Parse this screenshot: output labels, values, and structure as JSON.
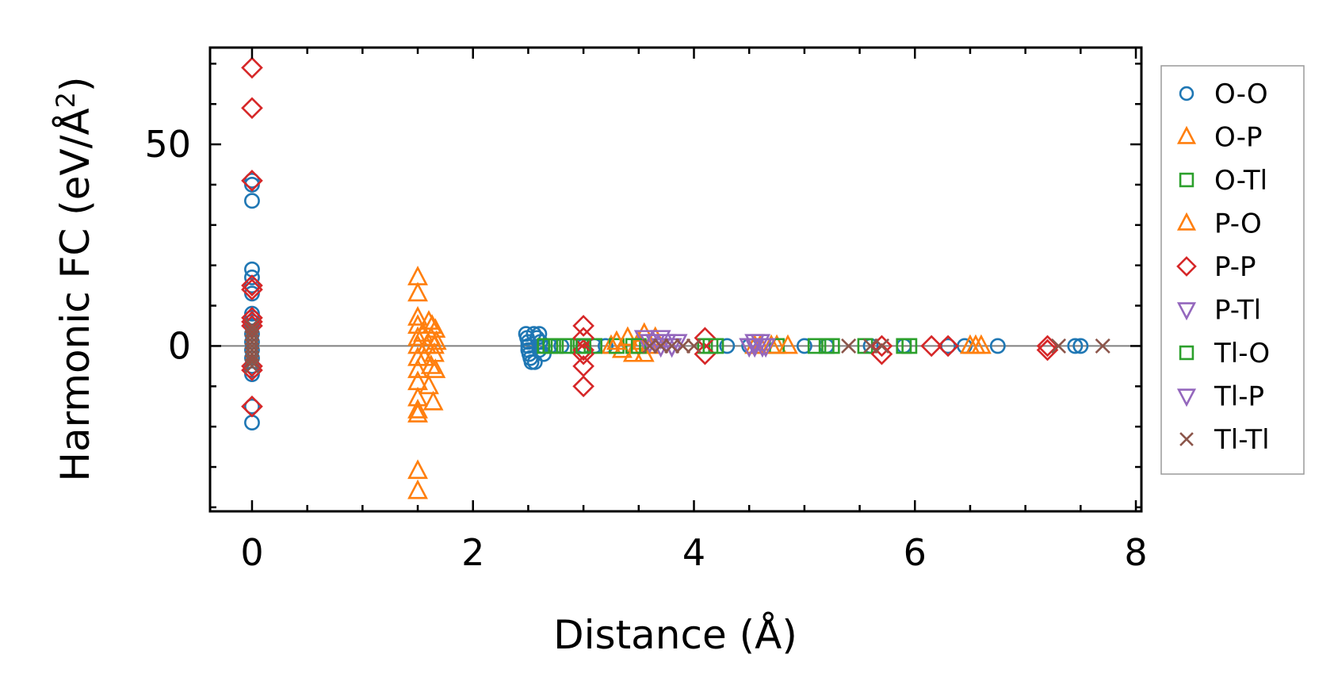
{
  "chart_data": {
    "type": "scatter",
    "xlabel": "Distance (Å)",
    "ylabel_main": "Harmonic FC (eV/Å",
    "ylabel_sup": "2",
    "ylabel_close": ")",
    "xlim": [
      -0.38,
      8.05
    ],
    "ylim": [
      -41,
      74
    ],
    "xticks": [
      0,
      2,
      4,
      6,
      8
    ],
    "xtick_labels": [
      "0",
      "2",
      "4",
      "6",
      "8"
    ],
    "yticks": [
      0,
      50
    ],
    "ytick_labels": [
      "0",
      "50"
    ],
    "x_minor_step": 0.5,
    "y_minor_step": 10,
    "zero_line": true,
    "grid": false,
    "legend_position": "right-outside",
    "series": [
      {
        "name": "O-O",
        "marker": "circle",
        "color": "#1f77b4",
        "points": [
          [
            0,
            41
          ],
          [
            0,
            40
          ],
          [
            0,
            36
          ],
          [
            0,
            19
          ],
          [
            0,
            17
          ],
          [
            0,
            15
          ],
          [
            0,
            13
          ],
          [
            0,
            8
          ],
          [
            0,
            7
          ],
          [
            0,
            6
          ],
          [
            0,
            5
          ],
          [
            0,
            3
          ],
          [
            0,
            1
          ],
          [
            0,
            -1
          ],
          [
            0,
            -3
          ],
          [
            0,
            -5
          ],
          [
            0,
            -6
          ],
          [
            0,
            -7
          ],
          [
            0,
            -15
          ],
          [
            0,
            -19
          ],
          [
            2.48,
            3
          ],
          [
            2.49,
            2
          ],
          [
            2.5,
            1
          ],
          [
            2.5,
            0
          ],
          [
            2.5,
            -1
          ],
          [
            2.51,
            -2
          ],
          [
            2.52,
            -3
          ],
          [
            2.53,
            -4
          ],
          [
            2.55,
            3
          ],
          [
            2.56,
            -4
          ],
          [
            2.58,
            2
          ],
          [
            2.6,
            3
          ],
          [
            2.6,
            -1
          ],
          [
            2.61,
            1
          ],
          [
            2.63,
            0
          ],
          [
            2.64,
            -2
          ],
          [
            2.7,
            0
          ],
          [
            2.8,
            0
          ],
          [
            3.0,
            0
          ],
          [
            3.1,
            0
          ],
          [
            3.2,
            0
          ],
          [
            4.3,
            0
          ],
          [
            4.5,
            0
          ],
          [
            5.0,
            0
          ],
          [
            5.2,
            0
          ],
          [
            5.6,
            0
          ],
          [
            5.9,
            0
          ],
          [
            6.3,
            0
          ],
          [
            6.45,
            0
          ],
          [
            6.75,
            0
          ],
          [
            7.45,
            0
          ],
          [
            7.5,
            0
          ]
        ]
      },
      {
        "name": "O-P",
        "marker": "triangle-up",
        "color": "#ff7f0e",
        "points": [
          [
            1.5,
            17
          ],
          [
            1.5,
            13
          ],
          [
            1.5,
            7
          ],
          [
            1.5,
            5
          ],
          [
            1.5,
            2
          ],
          [
            1.5,
            0
          ],
          [
            1.5,
            -3
          ],
          [
            1.5,
            -6
          ],
          [
            1.5,
            -9
          ],
          [
            1.5,
            -13
          ],
          [
            1.5,
            -16
          ],
          [
            1.5,
            -17
          ],
          [
            1.5,
            -31
          ],
          [
            1.5,
            -36
          ],
          [
            1.55,
            3
          ],
          [
            1.56,
            -3
          ],
          [
            1.58,
            0
          ],
          [
            1.6,
            6
          ],
          [
            1.6,
            -10
          ],
          [
            1.62,
            2
          ],
          [
            1.62,
            -5
          ],
          [
            1.63,
            5
          ],
          [
            1.64,
            -14
          ],
          [
            1.65,
            0
          ],
          [
            1.65,
            -2
          ],
          [
            1.66,
            4
          ],
          [
            1.66,
            -6
          ],
          [
            1.67,
            1
          ],
          [
            3.25,
            0
          ],
          [
            3.35,
            -1
          ],
          [
            3.45,
            -2
          ],
          [
            3.5,
            1
          ],
          [
            3.55,
            -2
          ],
          [
            3.6,
            0
          ],
          [
            4.6,
            0
          ],
          [
            4.75,
            0
          ],
          [
            6.55,
            0
          ],
          [
            6.6,
            0
          ]
        ]
      },
      {
        "name": "O-Tl",
        "marker": "square",
        "color": "#2ca02c",
        "points": [
          [
            2.65,
            0
          ],
          [
            2.75,
            0
          ],
          [
            2.85,
            0
          ],
          [
            2.95,
            0
          ],
          [
            3.1,
            0
          ],
          [
            3.3,
            0
          ],
          [
            3.45,
            0
          ],
          [
            4.1,
            0
          ],
          [
            4.2,
            0
          ],
          [
            4.75,
            0
          ],
          [
            5.1,
            0
          ],
          [
            5.25,
            0
          ],
          [
            5.55,
            0
          ],
          [
            5.95,
            0
          ]
        ]
      },
      {
        "name": "P-O",
        "marker": "triangle-up",
        "color": "#ff7f0e",
        "points": [
          [
            3.3,
            1
          ],
          [
            3.4,
            2
          ],
          [
            3.5,
            0
          ],
          [
            3.55,
            3
          ],
          [
            3.65,
            2
          ],
          [
            4.55,
            0
          ],
          [
            4.7,
            0
          ],
          [
            4.85,
            0
          ],
          [
            6.5,
            0
          ]
        ]
      },
      {
        "name": "P-P",
        "marker": "diamond",
        "color": "#d62728",
        "points": [
          [
            0,
            69
          ],
          [
            0,
            59
          ],
          [
            0,
            41
          ],
          [
            0,
            15
          ],
          [
            0,
            14
          ],
          [
            0,
            7
          ],
          [
            0,
            6
          ],
          [
            0,
            5
          ],
          [
            0,
            -5
          ],
          [
            0,
            -6
          ],
          [
            0,
            -15
          ],
          [
            3.0,
            5
          ],
          [
            3.0,
            2
          ],
          [
            3.0,
            -1
          ],
          [
            3.0,
            -2
          ],
          [
            3.0,
            -5
          ],
          [
            3.0,
            -10
          ],
          [
            4.1,
            2
          ],
          [
            4.1,
            -2
          ],
          [
            5.7,
            0
          ],
          [
            5.7,
            -2
          ],
          [
            6.15,
            0
          ],
          [
            6.3,
            0
          ],
          [
            7.2,
            0
          ],
          [
            7.2,
            -1
          ]
        ]
      },
      {
        "name": "P-Tl",
        "marker": "triangle-down",
        "color": "#9467bd",
        "points": [
          [
            3.55,
            2
          ],
          [
            3.65,
            1
          ],
          [
            3.7,
            0
          ],
          [
            3.75,
            1
          ],
          [
            3.8,
            0
          ],
          [
            3.85,
            1
          ],
          [
            4.5,
            0
          ],
          [
            4.55,
            0
          ],
          [
            4.6,
            1
          ],
          [
            4.65,
            0
          ]
        ]
      },
      {
        "name": "Tl-O",
        "marker": "square",
        "color": "#2ca02c",
        "points": [
          [
            2.7,
            0
          ],
          [
            3.0,
            0
          ],
          [
            3.5,
            0
          ],
          [
            4.15,
            0
          ],
          [
            5.2,
            0
          ],
          [
            5.9,
            0
          ]
        ]
      },
      {
        "name": "Tl-P",
        "marker": "triangle-down",
        "color": "#9467bd",
        "points": [
          [
            3.6,
            1
          ],
          [
            3.7,
            2
          ],
          [
            3.8,
            0
          ],
          [
            4.55,
            1
          ],
          [
            4.62,
            0
          ]
        ]
      },
      {
        "name": "Tl-Tl",
        "marker": "x",
        "color": "#8c564b",
        "points": [
          [
            0,
            5
          ],
          [
            0,
            4
          ],
          [
            0,
            3
          ],
          [
            0,
            2
          ],
          [
            0,
            1
          ],
          [
            0,
            0
          ],
          [
            0,
            -1
          ],
          [
            0,
            -2
          ],
          [
            0,
            -3
          ],
          [
            0,
            -4
          ],
          [
            0,
            -5
          ],
          [
            3.6,
            0
          ],
          [
            3.7,
            0
          ],
          [
            3.8,
            0
          ],
          [
            3.9,
            0
          ],
          [
            4.0,
            0
          ],
          [
            5.4,
            0
          ],
          [
            5.6,
            0
          ],
          [
            5.7,
            0
          ],
          [
            7.3,
            0
          ],
          [
            7.7,
            0
          ]
        ]
      }
    ]
  }
}
